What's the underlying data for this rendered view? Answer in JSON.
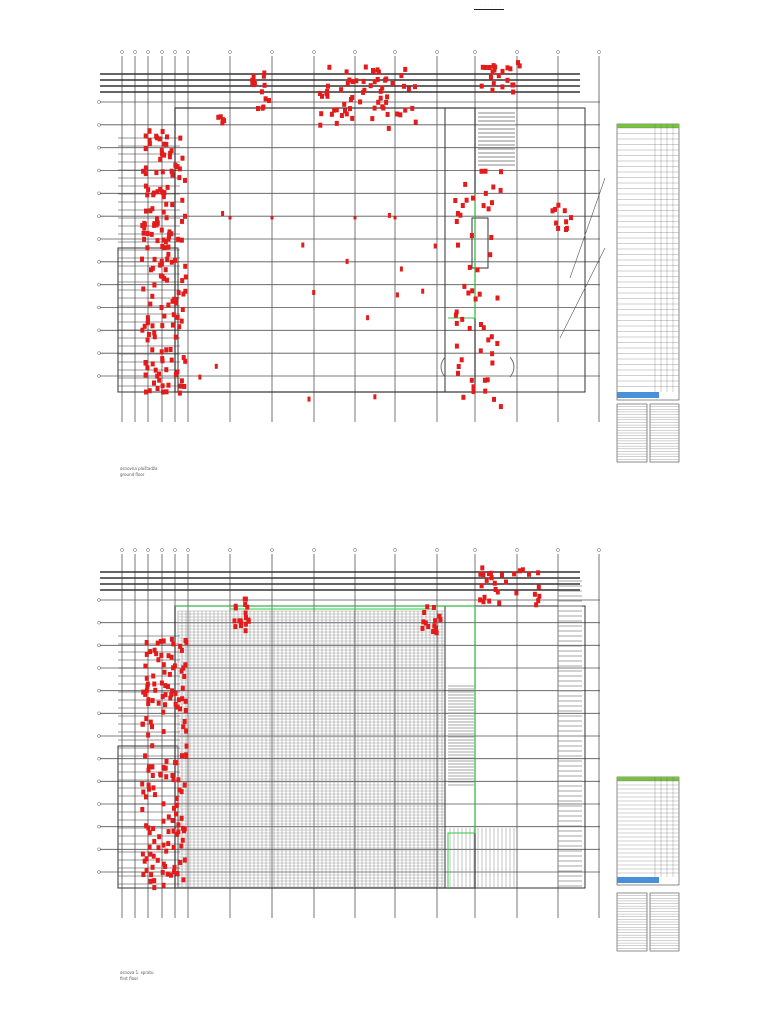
{
  "sheet": {
    "title": "· · · · · · · ·"
  },
  "plans": [
    {
      "name": "ground-floor",
      "label_line1": "osnovna ploštadža",
      "label_line2": "ground floor"
    },
    {
      "name": "first-floor",
      "label_line1": "osnova 1. spratu",
      "label_line2": "first floor"
    }
  ],
  "colors": {
    "grid_line": "#555555",
    "wall": "#333333",
    "equipment": "#e31b1b",
    "boundary": "#2ecc40",
    "legend_header": "#7ac142",
    "legend_footer": "#4a90d9",
    "racking": "#888888"
  },
  "legend": {
    "row_count_main": 48,
    "row_count_secondary": 22
  }
}
